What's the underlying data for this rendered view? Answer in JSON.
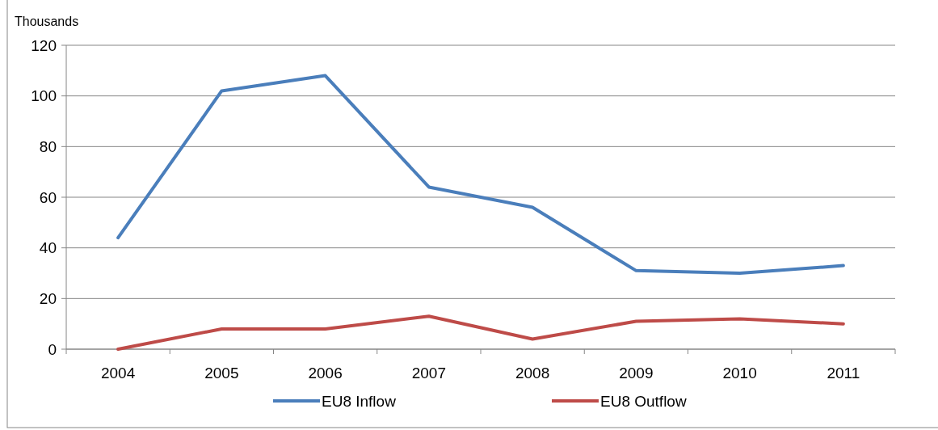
{
  "chart_data": {
    "type": "line",
    "ylabel": "Thousands",
    "categories": [
      "2004",
      "2005",
      "2006",
      "2007",
      "2008",
      "2009",
      "2010",
      "2011"
    ],
    "series": [
      {
        "name": "EU8 Inflow",
        "color": "#4a7ebb",
        "values": [
          44,
          102,
          108,
          64,
          56,
          31,
          30,
          33
        ]
      },
      {
        "name": "EU8 Outflow",
        "color": "#be4b48",
        "values": [
          0,
          8,
          8,
          13,
          4,
          11,
          12,
          10
        ]
      }
    ],
    "ylim": [
      0,
      120
    ],
    "yticks": [
      0,
      20,
      40,
      60,
      80,
      100,
      120
    ],
    "grid": "y",
    "legend": "bottom",
    "marker": "none",
    "line_style": "solid"
  }
}
